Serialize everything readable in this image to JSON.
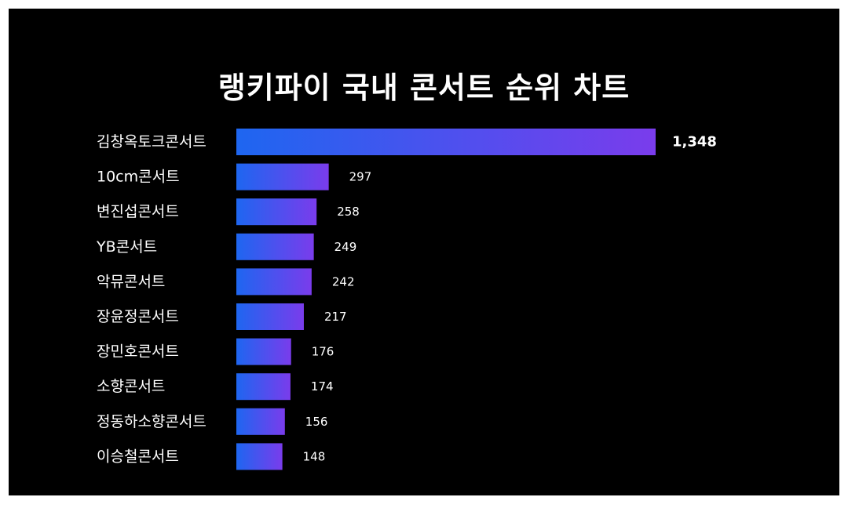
{
  "title": "랭키파이 국내 콘서트 순위 차트",
  "colors": {
    "background": "#000000",
    "text": "#ffffff",
    "bar_start": "#1e66f0",
    "bar_end": "#7a3cec"
  },
  "chart_data": {
    "type": "bar",
    "orientation": "horizontal",
    "title": "랭키파이 국내 콘서트 순위 차트",
    "categories": [
      "김창옥토크콘서트",
      "10cm콘서트",
      "변진섭콘서트",
      "YB콘서트",
      "악뮤콘서트",
      "장윤정콘서트",
      "장민호콘서트",
      "소향콘서트",
      "정동하소향콘서트",
      "이승철콘서트"
    ],
    "values": [
      1348,
      297,
      258,
      249,
      242,
      217,
      176,
      174,
      156,
      148
    ],
    "value_labels": [
      "1,348",
      "297",
      "258",
      "249",
      "242",
      "217",
      "176",
      "174",
      "156",
      "148"
    ],
    "xlim": [
      0,
      1348
    ],
    "grid": false,
    "legend": "none"
  }
}
